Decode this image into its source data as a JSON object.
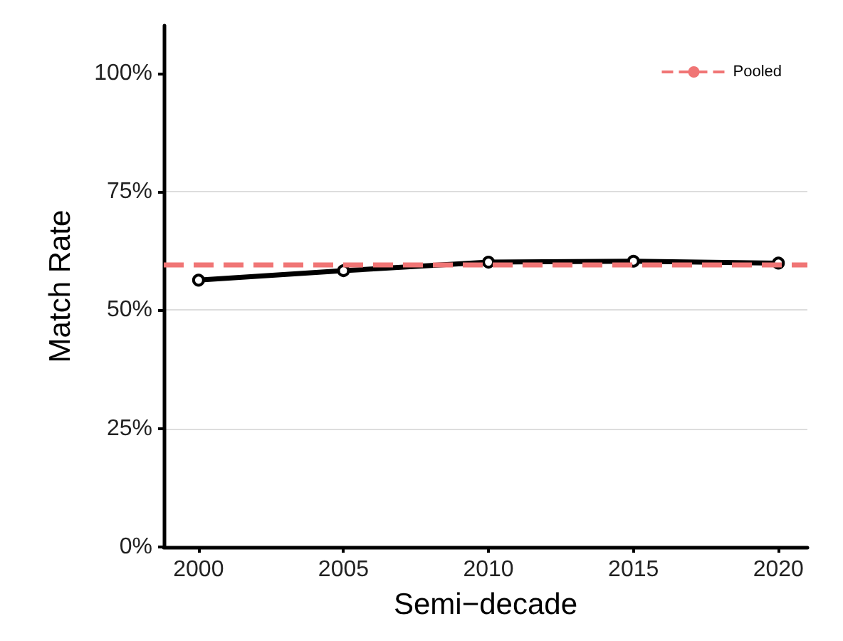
{
  "chart_data": {
    "type": "line",
    "xlabel": "Semi−decade",
    "ylabel": "Match Rate",
    "x": [
      2000,
      2005,
      2010,
      2015,
      2020
    ],
    "series": [
      {
        "color": "#000000",
        "values": [
          56.3,
          58.3,
          60.1,
          60.3,
          59.9
        ]
      }
    ],
    "xlim": [
      1998.8,
      2021
    ],
    "xticks": [
      2000,
      2005,
      2010,
      2015,
      2020
    ],
    "ylim": [
      0,
      110
    ],
    "yticks": [
      {
        "value": 0,
        "label": "0%"
      },
      {
        "value": 25,
        "label": "25%"
      },
      {
        "value": 50,
        "label": "50%"
      },
      {
        "value": 75,
        "label": "75%"
      },
      {
        "value": 100,
        "label": "100%"
      }
    ],
    "ref_lines": [
      {
        "axis": "y",
        "value": 59.5,
        "label": "Pooled",
        "color": "#f07575",
        "line_style": "dashed"
      }
    ],
    "grid": "y",
    "legend": "top right",
    "marker": "circle",
    "line_style": "solid"
  }
}
